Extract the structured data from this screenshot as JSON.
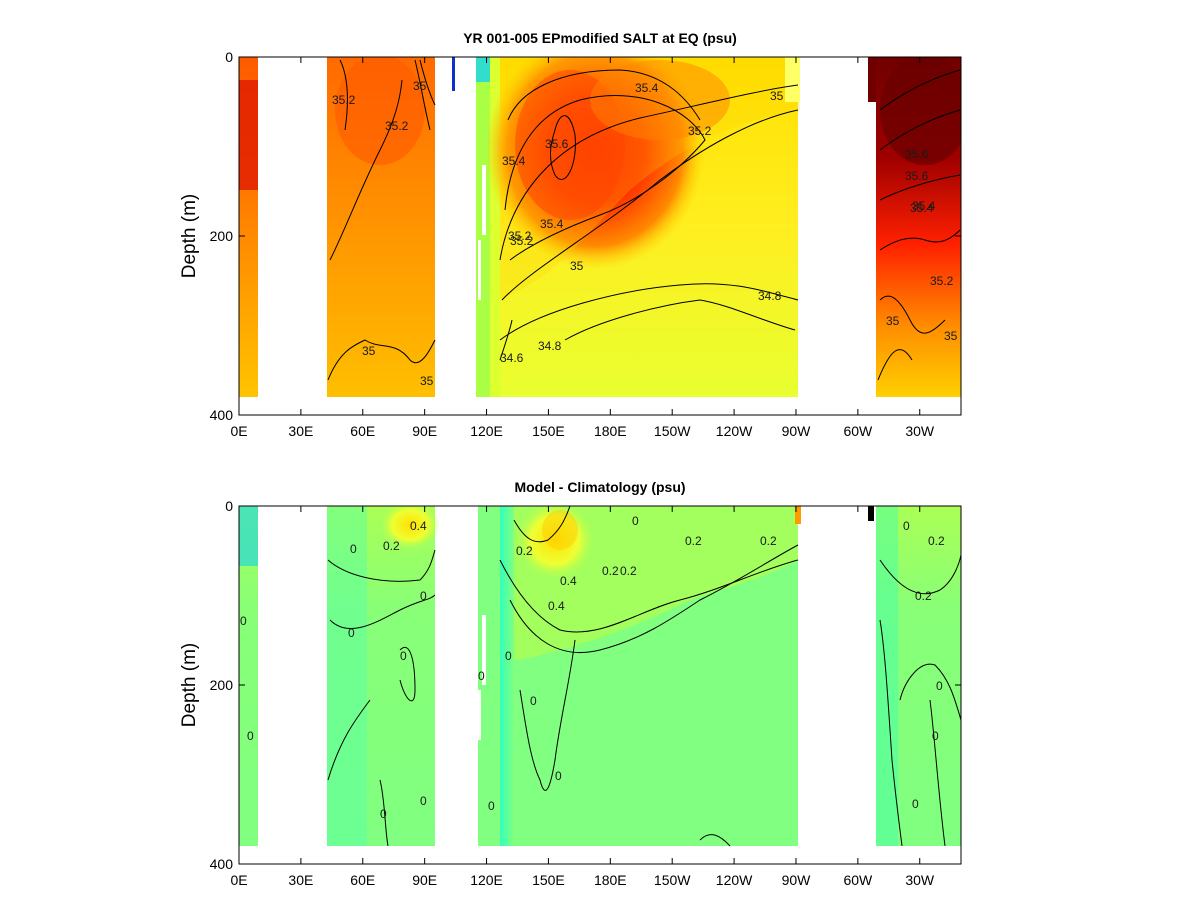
{
  "chart_data": [
    {
      "type": "heatmap",
      "title": "YR 001-005 EPmodified SALT at EQ (psu)",
      "ylabel": "Depth (m)",
      "xlim": [
        0,
        350
      ],
      "ylim": [
        400,
        0
      ],
      "x_ticks": [
        "0E",
        "30E",
        "60E",
        "90E",
        "120E",
        "150E",
        "180E",
        "150W",
        "120W",
        "90W",
        "60W",
        "30W"
      ],
      "y_ticks": [
        "0",
        "200",
        "400"
      ],
      "contour_labels": [
        "35.2",
        "35.2",
        "35",
        "35.4",
        "35.2",
        "35.6",
        "35.4",
        "35.2",
        "35.4",
        "35.2",
        "35",
        "35",
        "34.8",
        "34.8",
        "34.6",
        "35",
        "35",
        "35.4",
        "35.6",
        "35.6",
        "35.4",
        "35.2",
        "35",
        "35"
      ],
      "colors": {
        "low": "#7fff7f",
        "mid": "#ffff33",
        "high": "#ff2a00",
        "max": "#800000"
      }
    },
    {
      "type": "heatmap",
      "title": "Model - Climatology (psu)",
      "ylabel": "Depth (m)",
      "xlim": [
        0,
        350
      ],
      "ylim": [
        400,
        0
      ],
      "x_ticks": [
        "0E",
        "30E",
        "60E",
        "90E",
        "120E",
        "150E",
        "180E",
        "150W",
        "120W",
        "90W",
        "60W",
        "30W"
      ],
      "y_ticks": [
        "0",
        "200",
        "400"
      ],
      "contour_labels": [
        "0",
        "0.2",
        "0.4",
        "0",
        "0",
        "0",
        "0.2",
        "0.4",
        "0.2",
        "0.4",
        "0",
        "0",
        "0",
        "0",
        "0.2",
        "0.2",
        "0.2",
        "0.2",
        "0.2",
        "0",
        "0",
        "0",
        "0",
        "0",
        "0",
        "0",
        "0",
        "0",
        "0"
      ],
      "colors": {
        "base": "#80ff80",
        "cool": "#33ffaa",
        "warm": "#ffff44",
        "hot": "#ff9a00"
      }
    }
  ]
}
